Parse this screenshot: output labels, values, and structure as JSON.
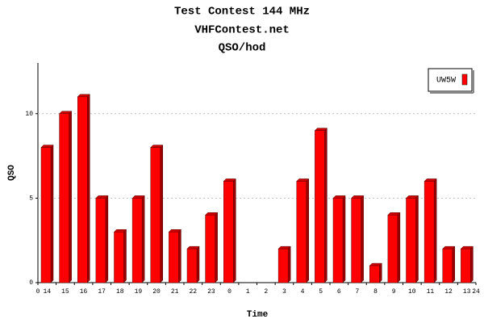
{
  "chart_data": {
    "type": "bar",
    "title": "Test Contest 144 MHz",
    "subtitle": "VHFContest.net",
    "subtitle2": "QSO/hod",
    "x_label": "Time",
    "y_label": "QSO",
    "categories": [
      "14",
      "15",
      "16",
      "17",
      "18",
      "19",
      "20",
      "21",
      "22",
      "23",
      "0",
      "1",
      "2",
      "3",
      "4",
      "5",
      "6",
      "7",
      "8",
      "9",
      "10",
      "11",
      "12",
      "13"
    ],
    "series": [
      {
        "name": "UW5W",
        "color": "#ff0000",
        "values": [
          8,
          10,
          11,
          5,
          3,
          5,
          8,
          3,
          2,
          4,
          6,
          0,
          0,
          2,
          6,
          9,
          5,
          5,
          1,
          4,
          5,
          6,
          2,
          2
        ]
      }
    ],
    "xlim": [
      0,
      24
    ],
    "xticks": [
      0,
      24
    ],
    "ylim": [
      0,
      13
    ],
    "yticks": [
      0,
      5,
      10
    ],
    "grid": true,
    "legend": "top-right"
  }
}
